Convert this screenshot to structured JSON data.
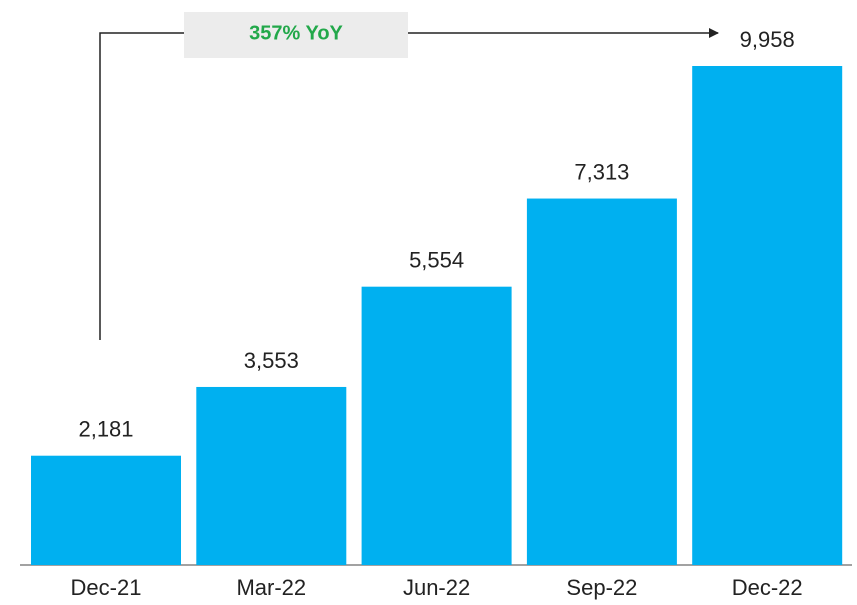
{
  "chart_data": {
    "type": "bar",
    "categories": [
      "Dec-21",
      "Mar-22",
      "Jun-22",
      "Sep-22",
      "Dec-22"
    ],
    "values": [
      2181,
      3553,
      5554,
      7313,
      9958
    ],
    "value_labels": [
      "2,181",
      "3,553",
      "5,554",
      "7,313",
      "9,958"
    ],
    "color": "#00b0f0",
    "annotation": "357% YoY"
  }
}
